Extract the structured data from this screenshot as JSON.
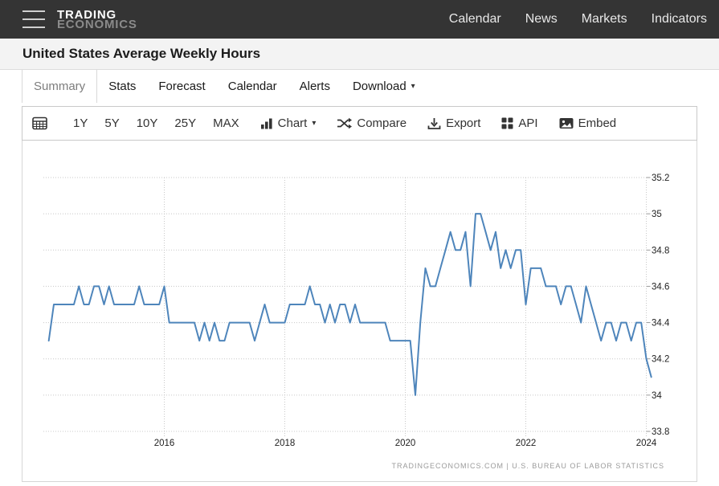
{
  "navbar": {
    "logo_line1": "TRADING",
    "logo_line2": "ECONOMICS",
    "links": [
      "Calendar",
      "News",
      "Markets",
      "Indicators"
    ]
  },
  "page": {
    "title": "United States Average Weekly Hours"
  },
  "tabs": {
    "items": [
      {
        "label": "Summary",
        "active": true
      },
      {
        "label": "Stats"
      },
      {
        "label": "Forecast"
      },
      {
        "label": "Calendar"
      },
      {
        "label": "Alerts"
      },
      {
        "label": "Download",
        "caret": "▾"
      }
    ]
  },
  "toolbar": {
    "ranges": [
      "1Y",
      "5Y",
      "10Y",
      "25Y",
      "MAX"
    ],
    "chart_label": "Chart",
    "chart_caret": "▾",
    "compare_label": "Compare",
    "export_label": "Export",
    "api_label": "API",
    "embed_label": "Embed"
  },
  "chart_data": {
    "type": "line",
    "title": "United States Average Weekly Hours",
    "xlabel": "",
    "ylabel": "",
    "grid": "dotted",
    "legend": "none",
    "line_color": "#4e85bb",
    "grid_color": "#c8c8c8",
    "label_color": "#222222",
    "ylim": [
      33.8,
      35.2
    ],
    "xlim": [
      2013.99,
      2024.09
    ],
    "x_ticks": [
      2016,
      2018,
      2020,
      2022,
      2024
    ],
    "y_ticks": [
      {
        "v": 33.8,
        "label": "33.8"
      },
      {
        "v": 34.0,
        "label": "34"
      },
      {
        "v": 34.2,
        "label": "34.2"
      },
      {
        "v": 34.4,
        "label": "34.4"
      },
      {
        "v": 34.6,
        "label": "34.6"
      },
      {
        "v": 34.8,
        "label": "34.8"
      },
      {
        "v": 35.0,
        "label": "35"
      },
      {
        "v": 35.2,
        "label": "35.2"
      }
    ],
    "series": [
      {
        "name": "Average Weekly Hours",
        "start_year": 2014.0833,
        "step_years": 0.083333,
        "values": [
          34.3,
          34.5,
          34.5,
          34.5,
          34.5,
          34.5,
          34.6,
          34.5,
          34.5,
          34.6,
          34.6,
          34.5,
          34.6,
          34.5,
          34.5,
          34.5,
          34.5,
          34.5,
          34.6,
          34.5,
          34.5,
          34.5,
          34.5,
          34.6,
          34.4,
          34.4,
          34.4,
          34.4,
          34.4,
          34.4,
          34.3,
          34.4,
          34.3,
          34.4,
          34.3,
          34.3,
          34.4,
          34.4,
          34.4,
          34.4,
          34.4,
          34.3,
          34.4,
          34.5,
          34.4,
          34.4,
          34.4,
          34.4,
          34.5,
          34.5,
          34.5,
          34.5,
          34.6,
          34.5,
          34.5,
          34.4,
          34.5,
          34.4,
          34.5,
          34.5,
          34.4,
          34.5,
          34.4,
          34.4,
          34.4,
          34.4,
          34.4,
          34.4,
          34.3,
          34.3,
          34.3,
          34.3,
          34.3,
          34.0,
          34.4,
          34.7,
          34.6,
          34.6,
          34.7,
          34.8,
          34.9,
          34.8,
          34.8,
          34.9,
          34.6,
          35.0,
          35.0,
          34.9,
          34.8,
          34.9,
          34.7,
          34.8,
          34.7,
          34.8,
          34.8,
          34.5,
          34.7,
          34.7,
          34.7,
          34.6,
          34.6,
          34.6,
          34.5,
          34.6,
          34.6,
          34.5,
          34.4,
          34.6,
          34.5,
          34.4,
          34.3,
          34.4,
          34.4,
          34.3,
          34.4,
          34.4,
          34.3,
          34.4,
          34.4,
          34.2,
          34.1
        ]
      }
    ],
    "attribution": "TRADINGECONOMICS.COM  |  U.S.  BUREAU  OF  LABOR  STATISTICS"
  }
}
